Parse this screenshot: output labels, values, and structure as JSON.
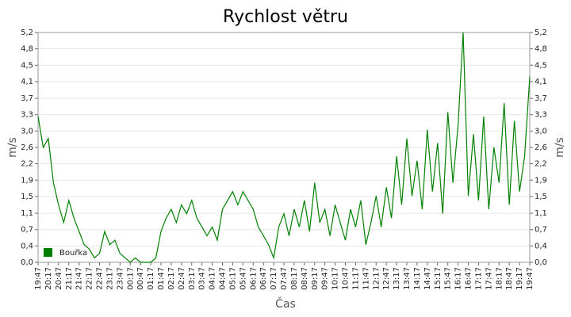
{
  "chart_data": {
    "type": "line",
    "title": "Rychlost větru",
    "xlabel": "Čas",
    "ylabel": "m/s",
    "y2label": "m/s",
    "categories": [
      "19:47",
      null,
      "20:17",
      null,
      "20:47",
      null,
      "21:17",
      null,
      "21:47",
      null,
      "22:17",
      null,
      "22:47",
      null,
      "23:17",
      null,
      "23:47",
      null,
      "00:17",
      null,
      "00:47",
      null,
      "01:17",
      null,
      "01:47",
      null,
      "02:17",
      null,
      "02:47",
      null,
      "03:17",
      null,
      "03:47",
      null,
      "04:17",
      null,
      "04:47",
      null,
      "05:17",
      null,
      "05:47",
      null,
      "06:17",
      null,
      "06:47",
      null,
      "07:17",
      null,
      "07:47",
      null,
      "08:17",
      null,
      "08:47",
      null,
      "09:17",
      null,
      "09:47",
      null,
      "10:17",
      null,
      "10:47",
      null,
      "11:17",
      null,
      "11:47",
      null,
      "12:17",
      null,
      "12:47",
      null,
      "13:17",
      null,
      "13:47",
      null,
      "14:17",
      null,
      "14:47",
      null,
      "15:17",
      null,
      "15:47",
      null,
      "16:17",
      null,
      "16:47",
      null,
      "17:17",
      null,
      "17:47",
      null,
      "18:17",
      null,
      "18:47",
      null,
      "19:17",
      null,
      "19:47"
    ],
    "series": [
      {
        "name": "Bouřka",
        "color": "#008000",
        "values": [
          3.3,
          2.6,
          2.8,
          1.8,
          1.3,
          0.9,
          1.4,
          1.0,
          0.7,
          0.4,
          0.3,
          0.1,
          0.2,
          0.7,
          0.4,
          0.5,
          0.2,
          0.1,
          0,
          0.1,
          0,
          0,
          0,
          0.1,
          0.7,
          1.0,
          1.2,
          0.9,
          1.3,
          1.1,
          1.4,
          1.0,
          0.8,
          0.6,
          0.8,
          0.5,
          1.2,
          1.4,
          1.6,
          1.3,
          1.6,
          1.4,
          1.2,
          0.8,
          0.6,
          0.4,
          0.1,
          0.8,
          1.1,
          0.6,
          1.2,
          0.8,
          1.4,
          0.7,
          1.8,
          0.9,
          1.2,
          0.6,
          1.3,
          0.9,
          0.5,
          1.2,
          0.8,
          1.4,
          0.4,
          0.9,
          1.5,
          0.8,
          1.7,
          1.0,
          2.4,
          1.3,
          2.8,
          1.5,
          2.3,
          1.2,
          3.0,
          1.6,
          2.7,
          1.1,
          3.4,
          1.8,
          3.1,
          5.2,
          1.5,
          2.9,
          1.4,
          3.3,
          1.2,
          2.6,
          1.8,
          3.6,
          1.3,
          3.2,
          1.6,
          2.4,
          4.2
        ]
      }
    ],
    "ylim": [
      0,
      5.2
    ],
    "yticks": [
      {
        "value": 0,
        "label": "0,0"
      },
      {
        "value": 0.37,
        "label": "0,4"
      },
      {
        "value": 0.74,
        "label": "0,7"
      },
      {
        "value": 1.11,
        "label": "1,1"
      },
      {
        "value": 1.49,
        "label": "1,5"
      },
      {
        "value": 1.86,
        "label": "1,9"
      },
      {
        "value": 2.23,
        "label": "2,2"
      },
      {
        "value": 2.6,
        "label": "2,6"
      },
      {
        "value": 2.97,
        "label": "3,0"
      },
      {
        "value": 3.34,
        "label": "3,3"
      },
      {
        "value": 3.71,
        "label": "3,7"
      },
      {
        "value": 4.09,
        "label": "4,1"
      },
      {
        "value": 4.46,
        "label": "4,5"
      },
      {
        "value": 4.83,
        "label": "4,8"
      },
      {
        "value": 5.2,
        "label": "5,2"
      }
    ],
    "y2lim": [
      0,
      5.2
    ],
    "y2ticks": [
      {
        "value": 0,
        "label": "0,0"
      },
      {
        "value": 0.37,
        "label": "0,4"
      },
      {
        "value": 0.74,
        "label": "0,7"
      },
      {
        "value": 1.11,
        "label": "1,1"
      },
      {
        "value": 1.49,
        "label": "1,5"
      },
      {
        "value": 1.86,
        "label": "1,9"
      },
      {
        "value": 2.23,
        "label": "2,2"
      },
      {
        "value": 2.6,
        "label": "2,6"
      },
      {
        "value": 2.97,
        "label": "3,0"
      },
      {
        "value": 3.34,
        "label": "3,3"
      },
      {
        "value": 3.71,
        "label": "3,7"
      },
      {
        "value": 4.09,
        "label": "4,1"
      },
      {
        "value": 4.46,
        "label": "4,5"
      },
      {
        "value": 4.83,
        "label": "4,8"
      },
      {
        "value": 5.2,
        "label": "5,2"
      }
    ],
    "grid": true,
    "legend": "lower left"
  }
}
